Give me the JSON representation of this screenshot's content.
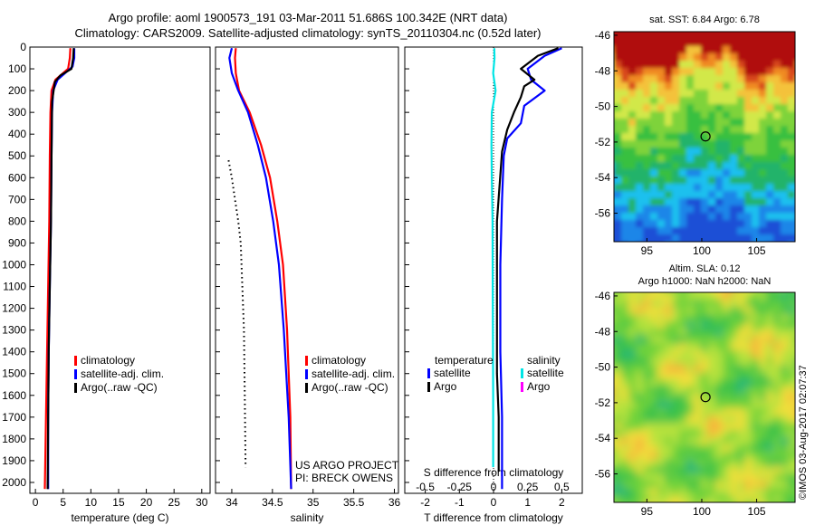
{
  "header": {
    "line1": "Argo profile: aoml 1900573_191 03-Mar-2011 51.686S 100.342E (NRT data)",
    "line2": "Climatology: CARS2009. Satellite-adjusted climatology: synTS_20110304.nc (0.52d later)"
  },
  "credits": {
    "project": "US ARGO PROJECT",
    "pi": "PI: BRECK OWENS",
    "imos": "©IMOS 03-Aug-2017 02:07:37"
  },
  "colors": {
    "climatology": "#ff0000",
    "satellite": "#0000ff",
    "argo": "#000000",
    "salinity_satellite": "#00e5e5",
    "salinity_argo": "#ff00ff"
  },
  "chart_data": [
    {
      "type": "line",
      "id": "temperature",
      "xlabel": "temperature (deg C)",
      "xlim": [
        -1,
        31.5
      ],
      "ylim": [
        2050,
        0
      ],
      "xticks": [
        0,
        5,
        10,
        15,
        20,
        25,
        30
      ],
      "xtick_labels": [
        "0",
        "5",
        "10",
        "15",
        "20",
        "25",
        "30"
      ],
      "yticks": [
        0,
        100,
        200,
        300,
        400,
        500,
        600,
        700,
        800,
        900,
        1000,
        1100,
        1200,
        1300,
        1400,
        1500,
        1600,
        1700,
        1800,
        1900,
        2000
      ],
      "ytick_labels": [
        "0",
        "100",
        "200",
        "300",
        "400",
        "500",
        "600",
        "700",
        "800",
        "900",
        "1000",
        "1100",
        "1200",
        "1300",
        "1400",
        "1500",
        "1600",
        "1700",
        "1800",
        "1900",
        "2000"
      ],
      "legend": {
        "placement": "lower-center",
        "entries": [
          "climatology",
          "satellite-adj. clim.",
          "Argo(..raw -QC)"
        ]
      },
      "series": [
        {
          "name": "climatology",
          "color": "#ff0000",
          "x": [
            6.3,
            6.2,
            5.9,
            3.6,
            2.9,
            2.7,
            2.6,
            2.5,
            2.3,
            2.1,
            1.9,
            1.7
          ],
          "y": [
            5,
            50,
            100,
            150,
            200,
            300,
            500,
            800,
            1100,
            1400,
            1700,
            2030
          ]
        },
        {
          "name": "satellite-adj. clim.",
          "color": "#0000ff",
          "x": [
            7.0,
            7.0,
            6.7,
            4.0,
            3.2,
            3.0,
            2.9,
            2.8,
            2.6,
            2.4,
            2.3,
            2.3
          ],
          "y": [
            5,
            50,
            90,
            150,
            200,
            300,
            500,
            800,
            1100,
            1400,
            1700,
            2030
          ]
        },
        {
          "name": "Argo(..raw -QC)",
          "color": "#000000",
          "x": [
            6.9,
            6.8,
            6.5,
            4.5,
            3.5,
            3.0,
            2.9,
            2.8,
            2.6,
            2.4,
            2.3,
            2.2
          ],
          "y": [
            5,
            50,
            100,
            130,
            160,
            250,
            500,
            800,
            1100,
            1400,
            1700,
            2030
          ]
        }
      ]
    },
    {
      "type": "line",
      "id": "salinity",
      "xlabel": "salinity",
      "xlim": [
        33.8,
        36.05
      ],
      "ylim": [
        2050,
        0
      ],
      "xticks": [
        34,
        34.5,
        35,
        35.5,
        36
      ],
      "xtick_labels": [
        "34",
        "34.5",
        "35",
        "35.5",
        "36"
      ],
      "legend": {
        "placement": "lower-right",
        "entries": [
          "climatology",
          "satellite-adj. clim.",
          "Argo(..raw -QC)"
        ]
      },
      "series": [
        {
          "name": "climatology",
          "color": "#ff0000",
          "x": [
            34.05,
            34.04,
            34.05,
            34.09,
            34.22,
            34.36,
            34.47,
            34.56,
            34.63,
            34.68,
            34.72,
            34.73
          ],
          "y": [
            5,
            50,
            120,
            200,
            300,
            450,
            600,
            800,
            1000,
            1300,
            1700,
            2030
          ]
        },
        {
          "name": "satellite-adj. clim.",
          "color": "#0000ff",
          "x": [
            34.0,
            33.97,
            34.0,
            34.08,
            34.2,
            34.32,
            34.42,
            34.51,
            34.58,
            34.64,
            34.7,
            34.73
          ],
          "y": [
            5,
            50,
            120,
            200,
            300,
            450,
            600,
            800,
            1000,
            1300,
            1700,
            2030
          ]
        },
        {
          "name": "Argo(..raw -QC)",
          "color": "#000000",
          "style": "dotted",
          "x": [
            33.96,
            34.0,
            34.04,
            34.08,
            34.11,
            34.13,
            34.15,
            34.16,
            34.17
          ],
          "y": [
            520,
            600,
            700,
            800,
            900,
            1100,
            1300,
            1600,
            1930
          ]
        }
      ]
    },
    {
      "type": "line",
      "id": "difference",
      "xlabel": "T difference from climatology",
      "xlabel_top": "S difference from climatology",
      "xlim": [
        -2.6,
        2.6
      ],
      "ylim": [
        2050,
        0
      ],
      "xticks": [
        -2,
        -1,
        0,
        1,
        2
      ],
      "xtick_labels": [
        "-2",
        "-1",
        "0",
        "1",
        "2"
      ],
      "xticks_top": [
        -0.5,
        -0.25,
        0,
        0.25,
        0.5
      ],
      "xtick_labels_top": [
        "-0.5",
        "-0.25",
        "0",
        "0.25",
        "0.5"
      ],
      "legend": {
        "placement": "lower-center",
        "temperature_title": "temperature",
        "salinity_title": "salinity",
        "entries": [
          "satellite",
          "Argo",
          "satellite",
          "Argo"
        ]
      },
      "series": [
        {
          "name": "T satellite",
          "color": "#0000ff",
          "x": [
            2.0,
            1.5,
            1.0,
            1.1,
            1.5,
            0.9,
            0.8,
            0.4,
            0.3,
            0.25,
            0.2,
            0.2,
            0.25,
            0.25
          ],
          "y": [
            5,
            40,
            100,
            150,
            200,
            270,
            350,
            420,
            500,
            700,
            1000,
            1400,
            1700,
            2030
          ]
        },
        {
          "name": "T Argo",
          "color": "#000000",
          "x": [
            1.9,
            1.3,
            0.8,
            1.2,
            0.9,
            0.8,
            0.6,
            0.4,
            0.25,
            0.1,
            0.1,
            0.1,
            0.15,
            0.15
          ],
          "y": [
            5,
            40,
            100,
            150,
            180,
            230,
            300,
            380,
            480,
            800,
            1200,
            1500,
            1700,
            1950
          ]
        },
        {
          "name": "S satellite",
          "color": "#00e5e5",
          "x": [
            0.02,
            0.03,
            -0.01,
            0.06,
            -0.05,
            -0.06,
            -0.05,
            -0.03,
            -0.02,
            -0.01,
            -0.01
          ],
          "y": [
            5,
            50,
            120,
            200,
            300,
            450,
            600,
            800,
            1200,
            1600,
            1930
          ]
        },
        {
          "name": "S Argo",
          "color": "#ff00ff",
          "x": [],
          "y": []
        }
      ]
    },
    {
      "type": "heatmap",
      "id": "sst-map",
      "title": "sat. SST: 6.84 Argo: 6.78",
      "xlim": [
        92,
        108.5
      ],
      "ylim": [
        -57.6,
        -45.8
      ],
      "xticks": [
        95,
        100,
        105
      ],
      "xtick_labels": [
        "95",
        "100",
        "105"
      ],
      "yticks": [
        -46,
        -48,
        -50,
        -52,
        -54,
        -56
      ],
      "ytick_labels": [
        "-46",
        "-48",
        "-50",
        "-52",
        "-54",
        "-56"
      ],
      "marker": {
        "lon": 100.342,
        "lat": -51.686
      }
    },
    {
      "type": "heatmap",
      "id": "sla-map",
      "title_line1": "Altim. SLA: 0.12",
      "title_line2": "Argo h1000: NaN h2000: NaN",
      "xlim": [
        92,
        108.5
      ],
      "ylim": [
        -57.6,
        -45.8
      ],
      "xticks": [
        95,
        100,
        105
      ],
      "xtick_labels": [
        "95",
        "100",
        "105"
      ],
      "yticks": [
        -46,
        -48,
        -50,
        -52,
        -54,
        -56
      ],
      "ytick_labels": [
        "-46",
        "-48",
        "-50",
        "-52",
        "-54",
        "-56"
      ],
      "marker": {
        "lon": 100.342,
        "lat": -51.686
      }
    }
  ]
}
